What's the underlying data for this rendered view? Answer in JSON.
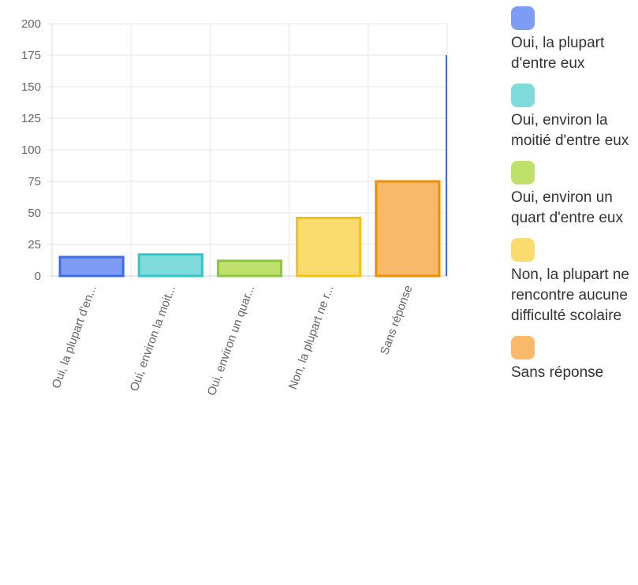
{
  "chart_data": {
    "type": "bar",
    "categories": [
      "Oui, la plupart d'en...",
      "Oui, environ la moit...",
      "Oui, environ un quar...",
      "Non, la plupart ne r...",
      "Sans réponse"
    ],
    "values": [
      15,
      17,
      12,
      46,
      75
    ],
    "ylim": [
      0,
      200
    ],
    "yticks": [
      "200",
      "175",
      "150",
      "125",
      "100",
      "75",
      "50",
      "25",
      "0"
    ],
    "grid": true,
    "colors": {
      "fill": [
        "#7f9cf5",
        "#7fdbdb",
        "#bfe06a",
        "#fadc6e",
        "#f8b96a"
      ],
      "stroke": [
        "#3b6cf0",
        "#2ec7c7",
        "#8cc63e",
        "#f4c20d",
        "#f08c00"
      ]
    },
    "legend_position": "right",
    "legend": [
      "Oui, la plupart d'entre eux",
      "Oui, environ la moitié d'entre eux",
      "Oui, environ un quart d'entre eux",
      "Non, la plupart ne rencontre aucune difficulté scolaire",
      "Sans réponse"
    ]
  }
}
